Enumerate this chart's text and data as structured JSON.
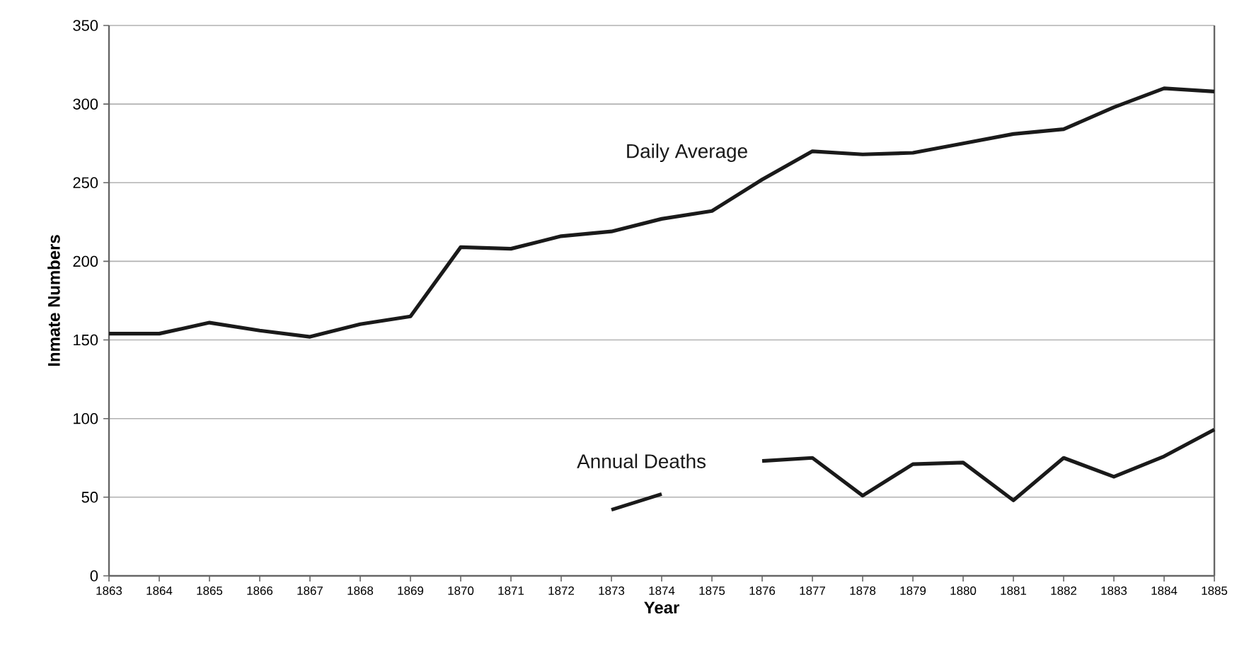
{
  "chart_data": {
    "type": "line",
    "xlabel": "Year",
    "ylabel": "Inmate Numbers",
    "x": [
      1863,
      1864,
      1865,
      1866,
      1867,
      1868,
      1869,
      1870,
      1871,
      1872,
      1873,
      1874,
      1875,
      1876,
      1877,
      1878,
      1879,
      1880,
      1881,
      1882,
      1883,
      1884,
      1885
    ],
    "series": [
      {
        "name": "Daily Average",
        "color": "#1a1a1a",
        "values": [
          154,
          154,
          161,
          156,
          152,
          160,
          165,
          209,
          208,
          216,
          219,
          227,
          232,
          252,
          270,
          268,
          269,
          275,
          281,
          284,
          298,
          310,
          308
        ]
      },
      {
        "name": "Annual Deaths",
        "color": "#1a1a1a",
        "values": [
          null,
          null,
          null,
          null,
          null,
          null,
          null,
          null,
          null,
          null,
          42,
          52,
          null,
          73,
          75,
          51,
          71,
          72,
          48,
          75,
          63,
          76,
          93
        ]
      }
    ],
    "xlim": [
      1863,
      1885
    ],
    "xticks": [
      1863,
      1864,
      1865,
      1866,
      1867,
      1868,
      1869,
      1870,
      1871,
      1872,
      1873,
      1874,
      1875,
      1876,
      1877,
      1878,
      1879,
      1880,
      1881,
      1882,
      1883,
      1884,
      1885
    ],
    "ylim": [
      0,
      350
    ],
    "yticks": [
      0,
      50,
      100,
      150,
      200,
      250,
      300,
      350
    ],
    "grid": "y",
    "legend": false,
    "marker": "none",
    "line_style": "solid"
  }
}
